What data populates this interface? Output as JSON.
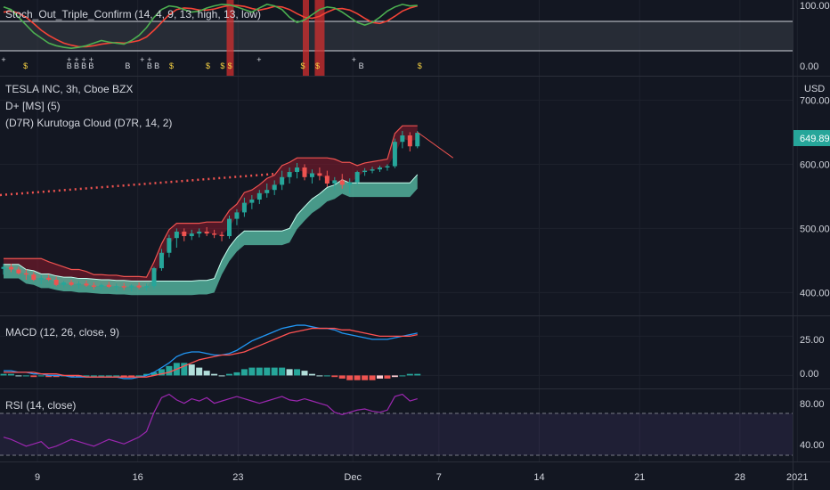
{
  "colors": {
    "background": "#131722",
    "grid": "#1e222d",
    "text": "#d1d4dc",
    "bull": "#26a69a",
    "bear": "#ef5350",
    "macd_line": "#2196f3",
    "signal_line": "#ff5252",
    "rsi_line": "#9c27b0",
    "stoch_k": "#4caf50",
    "stoch_d": "#f44336",
    "last_price_bg": "#26a69a",
    "cloud_upper": "#8b1a2b",
    "cloud_lower": "#5fd1b5",
    "signal_star": "#f5d142"
  },
  "panes": {
    "stoch": {
      "title": "Stoch_Out_Triple_Confirm (14, 4, 9, 13, high, 13, low)",
      "ticks": [
        "100.00",
        "0.00"
      ],
      "signal_letters": [
        "$",
        "+",
        "B"
      ]
    },
    "price": {
      "title": "TESLA INC, 3h, Cboe BZX",
      "ind1": "D+ [MS] (5)",
      "ind2": "(D7R) Kurutoga Cloud (D7R, 14, 2)",
      "currency": "USD",
      "ticks": [
        "700.00",
        "600.00",
        "500.00",
        "400.00"
      ],
      "last_price": "649.89"
    },
    "macd": {
      "title": "MACD (12, 26, close, 9)",
      "ticks": [
        "25.00",
        "0.00"
      ]
    },
    "rsi": {
      "title": "RSI (14, close)",
      "ticks": [
        "80.00",
        "40.00"
      ]
    }
  },
  "x_axis": {
    "labels": [
      "9",
      "16",
      "23",
      "Dec",
      "7",
      "14",
      "21",
      "28",
      "2021"
    ]
  },
  "chart_data": [
    {
      "type": "candlestick",
      "title": "TESLA INC, 3h, Cboe BZX",
      "ylim": [
        370,
        720
      ],
      "x_start_day": 6,
      "candles": [
        [
          437,
          445,
          428,
          440
        ],
        [
          440,
          445,
          432,
          436
        ],
        [
          436,
          440,
          428,
          430
        ],
        [
          430,
          436,
          420,
          428
        ],
        [
          428,
          432,
          418,
          420
        ],
        [
          420,
          427,
          413,
          423
        ],
        [
          423,
          428,
          418,
          420
        ],
        [
          420,
          425,
          410,
          412
        ],
        [
          412,
          418,
          408,
          416
        ],
        [
          416,
          420,
          410,
          412
        ],
        [
          412,
          418,
          406,
          414
        ],
        [
          414,
          419,
          409,
          411
        ],
        [
          411,
          416,
          405,
          409
        ],
        [
          409,
          414,
          404,
          412
        ],
        [
          412,
          417,
          407,
          409
        ],
        [
          409,
          414,
          403,
          410
        ],
        [
          410,
          415,
          404,
          408
        ],
        [
          408,
          413,
          402,
          411
        ],
        [
          411,
          416,
          405,
          408
        ],
        [
          408,
          414,
          403,
          410
        ],
        [
          410,
          440,
          406,
          438
        ],
        [
          438,
          468,
          434,
          462
        ],
        [
          462,
          490,
          455,
          485
        ],
        [
          485,
          500,
          470,
          495
        ],
        [
          495,
          500,
          480,
          488
        ],
        [
          488,
          498,
          482,
          492
        ],
        [
          492,
          500,
          486,
          495
        ],
        [
          495,
          502,
          488,
          492
        ],
        [
          492,
          498,
          485,
          490
        ],
        [
          490,
          495,
          480,
          488
        ],
        [
          488,
          520,
          484,
          515
        ],
        [
          515,
          530,
          505,
          525
        ],
        [
          525,
          548,
          518,
          540
        ],
        [
          540,
          552,
          530,
          545
        ],
        [
          545,
          560,
          538,
          555
        ],
        [
          555,
          570,
          548,
          560
        ],
        [
          560,
          575,
          552,
          568
        ],
        [
          568,
          590,
          560,
          580
        ],
        [
          580,
          595,
          570,
          588
        ],
        [
          588,
          602,
          578,
          595
        ],
        [
          595,
          600,
          575,
          580
        ],
        [
          580,
          592,
          570,
          586
        ],
        [
          586,
          595,
          575,
          582
        ],
        [
          582,
          590,
          565,
          570
        ],
        [
          570,
          580,
          560,
          575
        ],
        [
          575,
          585,
          562,
          568
        ],
        [
          568,
          578,
          555,
          572
        ],
        [
          572,
          590,
          568,
          588
        ],
        [
          588,
          594,
          582,
          590
        ],
        [
          590,
          596,
          586,
          592
        ],
        [
          592,
          598,
          588,
          595
        ],
        [
          595,
          600,
          590,
          597
        ],
        [
          597,
          640,
          594,
          635
        ],
        [
          635,
          652,
          625,
          645
        ],
        [
          645,
          650,
          620,
          628
        ],
        [
          628,
          652,
          625,
          649
        ]
      ]
    },
    {
      "type": "line",
      "title": "MACD (12, 26, close, 9)",
      "ylim": [
        -6,
        36
      ],
      "macd": [
        3,
        3,
        2,
        2,
        1,
        1,
        0,
        0,
        0,
        -1,
        -1,
        -1,
        -1,
        -1,
        -1,
        -1,
        -2,
        -2,
        -1,
        0,
        2,
        5,
        8,
        12,
        14,
        15,
        15,
        14,
        13,
        13,
        14,
        16,
        19,
        22,
        24,
        26,
        28,
        30,
        31,
        32,
        32,
        31,
        30,
        30,
        29,
        27,
        26,
        25,
        24,
        23,
        23,
        23,
        24,
        25,
        26,
        27
      ],
      "signal": [
        2,
        2,
        2,
        2,
        2,
        1,
        1,
        1,
        0,
        0,
        0,
        -1,
        -1,
        -1,
        -1,
        -1,
        -1,
        -1,
        -1,
        -1,
        0,
        1,
        2,
        4,
        6,
        8,
        10,
        11,
        12,
        13,
        13,
        14,
        15,
        17,
        19,
        21,
        23,
        25,
        27,
        28,
        29,
        30,
        30,
        30,
        30,
        29,
        29,
        28,
        27,
        26,
        25,
        25,
        25,
        25,
        25,
        26
      ],
      "histogram": [
        1,
        1,
        0,
        0,
        -1,
        0,
        -1,
        -1,
        0,
        -1,
        -1,
        0,
        0,
        0,
        0,
        0,
        -1,
        -1,
        0,
        1,
        2,
        4,
        6,
        8,
        8,
        7,
        5,
        3,
        1,
        0,
        1,
        2,
        4,
        5,
        5,
        5,
        5,
        5,
        4,
        4,
        3,
        1,
        0,
        0,
        -1,
        -2,
        -3,
        -3,
        -3,
        -3,
        -2,
        -2,
        -1,
        0,
        1,
        1
      ]
    },
    {
      "type": "line",
      "title": "RSI (14, close)",
      "ylim": [
        30,
        90
      ],
      "bands": [
        70,
        30
      ],
      "values": [
        50,
        48,
        45,
        42,
        44,
        46,
        40,
        42,
        45,
        48,
        46,
        44,
        42,
        45,
        48,
        46,
        44,
        47,
        50,
        55,
        72,
        85,
        88,
        83,
        80,
        84,
        82,
        85,
        80,
        82,
        84,
        86,
        84,
        82,
        80,
        82,
        84,
        86,
        83,
        82,
        84,
        82,
        80,
        78,
        72,
        70,
        72,
        74,
        75,
        73,
        72,
        74,
        86,
        88,
        82,
        84
      ]
    },
    {
      "type": "line",
      "title": "Stoch_Out_Triple_Confirm (14, 4, 9, 13, high, 13, low)",
      "ylim": [
        0,
        100
      ],
      "k": [
        90,
        85,
        70,
        55,
        40,
        30,
        20,
        15,
        12,
        10,
        12,
        15,
        20,
        25,
        22,
        20,
        18,
        25,
        35,
        50,
        70,
        85,
        92,
        90,
        85,
        80,
        82,
        88,
        92,
        95,
        94,
        90,
        85,
        80,
        88,
        95,
        92,
        85,
        70,
        60,
        65,
        75,
        85,
        90,
        88,
        80,
        70,
        60,
        55,
        60,
        70,
        82,
        90,
        95,
        92,
        93
      ],
      "d": [
        80,
        82,
        78,
        70,
        58,
        45,
        35,
        27,
        20,
        16,
        13,
        13,
        15,
        18,
        20,
        21,
        20,
        22,
        25,
        32,
        45,
        60,
        75,
        85,
        88,
        87,
        84,
        84,
        86,
        90,
        93,
        93,
        91,
        87,
        84,
        87,
        91,
        90,
        85,
        77,
        70,
        68,
        72,
        80,
        86,
        87,
        84,
        77,
        68,
        60,
        58,
        63,
        72,
        82,
        88,
        92
      ]
    }
  ]
}
